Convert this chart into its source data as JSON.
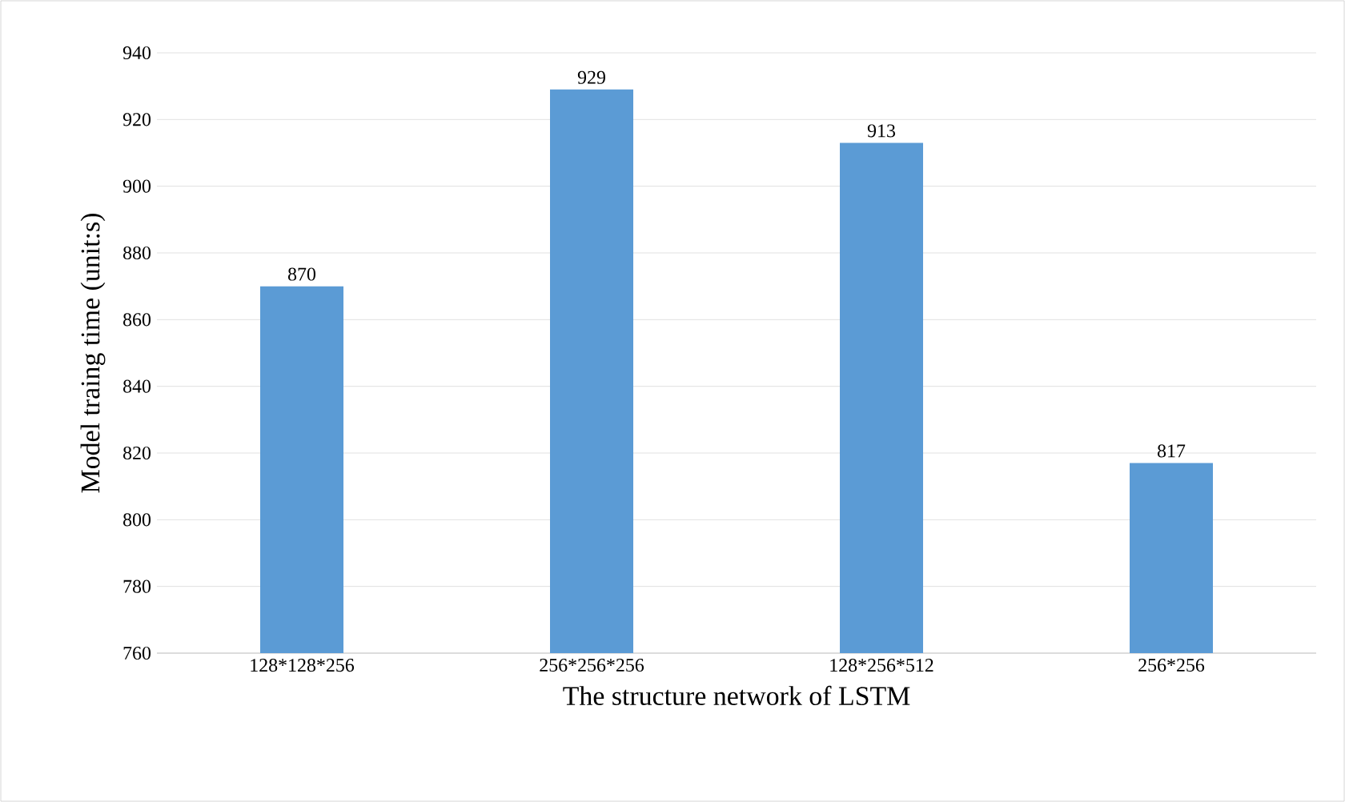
{
  "chart_data": {
    "type": "bar",
    "xlabel": "The structure network of LSTM",
    "ylabel": "Model traing time (unit:s)",
    "categories": [
      "128*128*256",
      "256*256*256",
      "128*256*512",
      "256*256"
    ],
    "values": [
      870,
      929,
      913,
      817
    ],
    "color": "#5b9bd5",
    "ylim": [
      760,
      940
    ],
    "yticks": [
      760,
      780,
      800,
      820,
      840,
      860,
      880,
      900,
      920,
      940
    ],
    "grid": "y",
    "data_labels": true
  }
}
